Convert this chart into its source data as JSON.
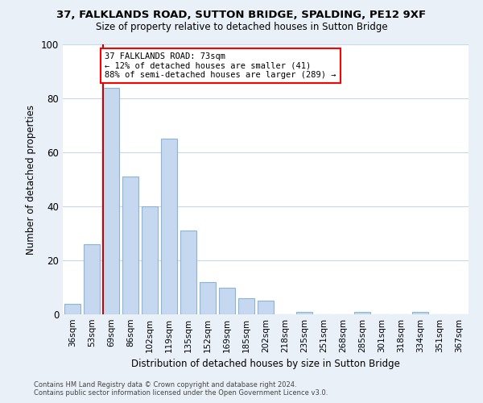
{
  "title1": "37, FALKLANDS ROAD, SUTTON BRIDGE, SPALDING, PE12 9XF",
  "title2": "Size of property relative to detached houses in Sutton Bridge",
  "xlabel": "Distribution of detached houses by size in Sutton Bridge",
  "ylabel": "Number of detached properties",
  "categories": [
    "36sqm",
    "53sqm",
    "69sqm",
    "86sqm",
    "102sqm",
    "119sqm",
    "135sqm",
    "152sqm",
    "169sqm",
    "185sqm",
    "202sqm",
    "218sqm",
    "235sqm",
    "251sqm",
    "268sqm",
    "285sqm",
    "301sqm",
    "318sqm",
    "334sqm",
    "351sqm",
    "367sqm"
  ],
  "values": [
    4,
    26,
    84,
    51,
    40,
    65,
    31,
    12,
    10,
    6,
    5,
    0,
    1,
    0,
    0,
    1,
    0,
    0,
    1,
    0,
    0
  ],
  "bar_color": "#c5d8f0",
  "bar_edge_color": "#8ab4d8",
  "highlight_index": 2,
  "highlight_color": "#cc0000",
  "ylim": [
    0,
    100
  ],
  "yticks": [
    0,
    20,
    40,
    60,
    80,
    100
  ],
  "annotation_title": "37 FALKLANDS ROAD: 73sqm",
  "annotation_line1": "← 12% of detached houses are smaller (41)",
  "annotation_line2": "88% of semi-detached houses are larger (289) →",
  "footer1": "Contains HM Land Registry data © Crown copyright and database right 2024.",
  "footer2": "Contains public sector information licensed under the Open Government Licence v3.0.",
  "bg_color": "#eaf0f8",
  "plot_bg_color": "#ffffff"
}
